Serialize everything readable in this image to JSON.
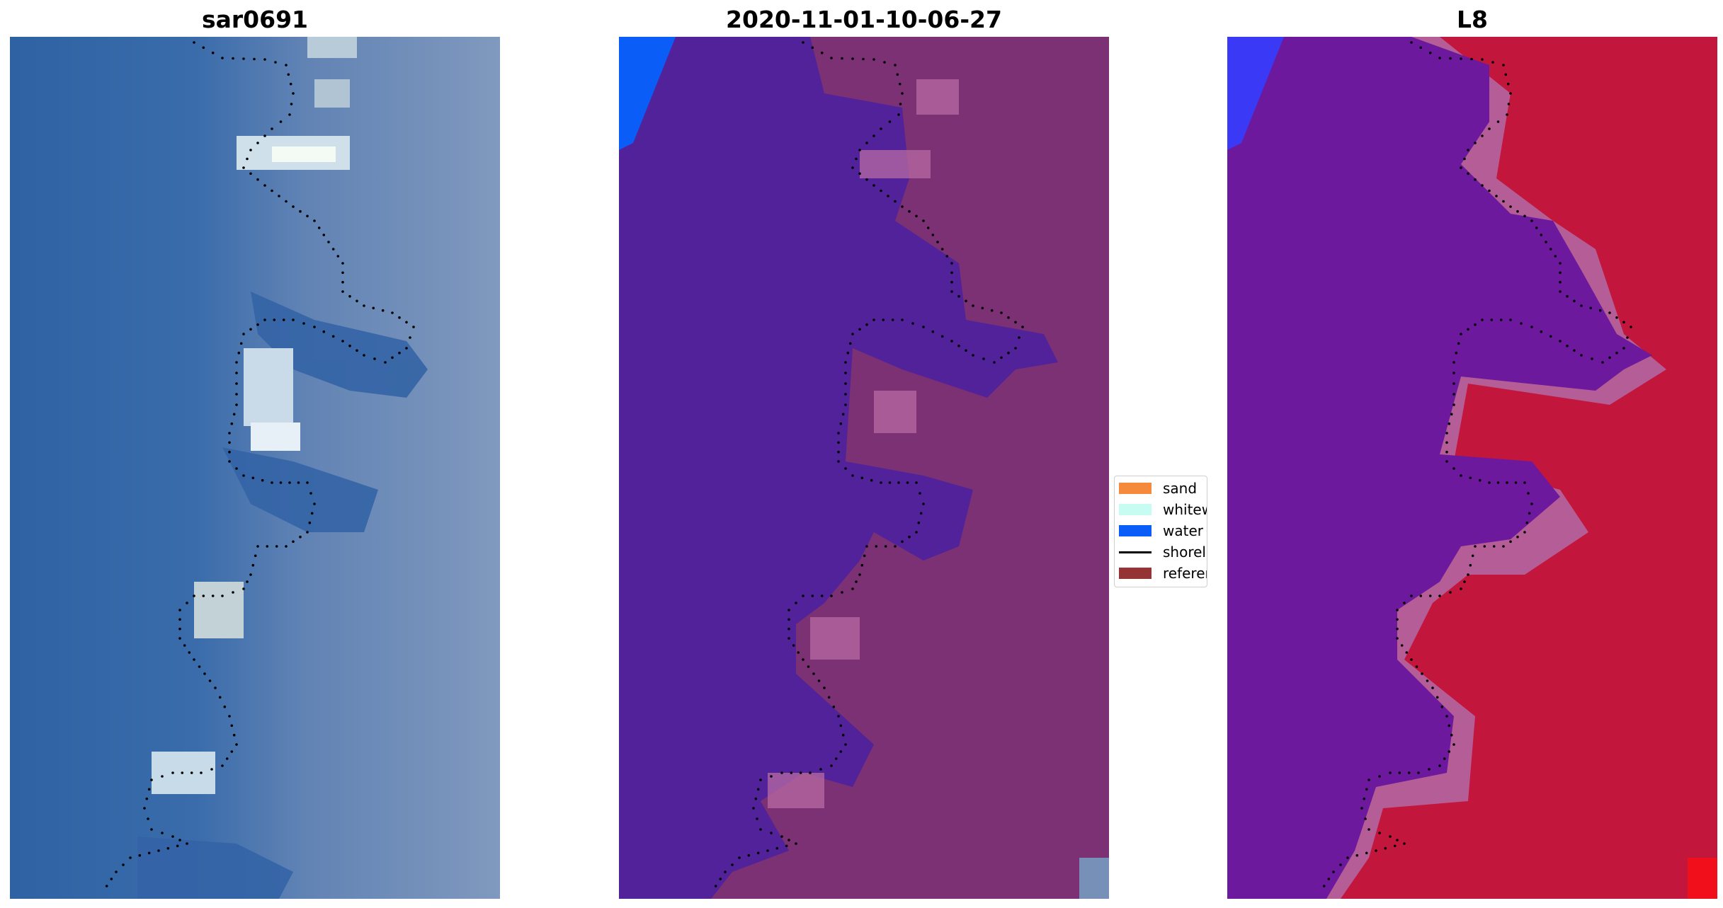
{
  "panels": [
    {
      "title": "sar0691",
      "kind": "rgb"
    },
    {
      "title": "2020-11-01-10-06-27",
      "kind": "classified"
    },
    {
      "title": "L8",
      "kind": "index"
    }
  ],
  "legend": {
    "placement": "center-left of third panel",
    "items": [
      {
        "label": "sand",
        "color": "#f58a3c",
        "kind": "patch"
      },
      {
        "label": "whitewater",
        "color": "#c6fcf1",
        "kind": "patch"
      },
      {
        "label": "water",
        "color": "#0a5ef7",
        "kind": "patch"
      },
      {
        "label": "shoreline",
        "color": "#000000",
        "kind": "line"
      },
      {
        "label": "reference",
        "color": "#953434",
        "kind": "patch"
      }
    ]
  },
  "colors": {
    "rgb_water": "#2f64a4",
    "rgb_land": "#7690b8",
    "rgb_whitewater": "#f2f8f6",
    "class_water": "#52229a",
    "class_land": "#7b3173",
    "class_land_light": "#b86aa3",
    "class_blue": "#0a5ef7",
    "index_water": "#6d199e",
    "index_land": "#c2163c",
    "index_edge": "#b36aa6",
    "index_blue": "#3a39f5",
    "index_red": "#f20f1c",
    "shoreline": "#000000"
  }
}
